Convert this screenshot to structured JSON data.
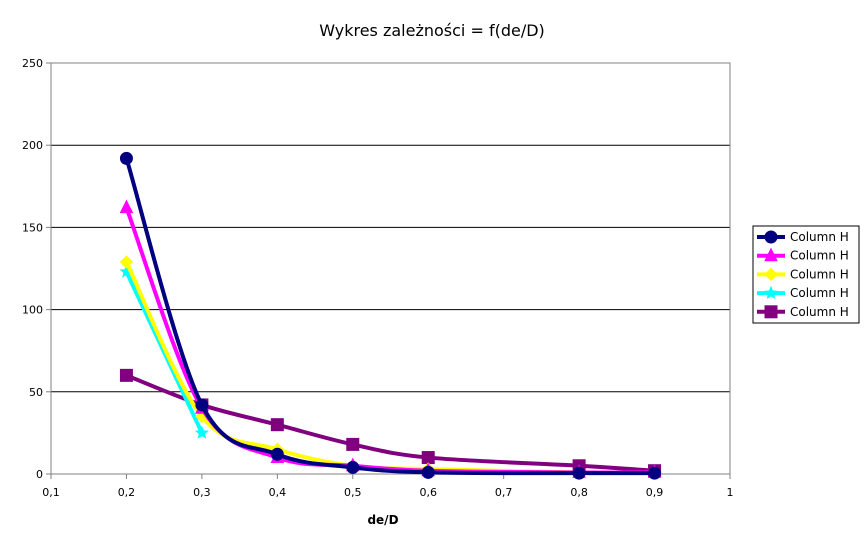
{
  "chart_data": {
    "type": "line",
    "title": "Wykres zależności    = f(de/D)",
    "xlabel": "de/D",
    "ylabel": "",
    "xlim": [
      0.1,
      1.0
    ],
    "ylim": [
      0,
      250
    ],
    "x_ticks": [
      "0,1",
      "0,2",
      "0,3",
      "0,4",
      "0,5",
      "0,6",
      "0,7",
      "0,8",
      "0,9",
      "1"
    ],
    "y_ticks": [
      "0",
      "50",
      "100",
      "150",
      "200",
      "250"
    ],
    "grid": "horizontal",
    "legend_position": "right",
    "series": [
      {
        "name": "Column H",
        "color": "#000080",
        "marker": "circle",
        "x": [
          0.2,
          0.3,
          0.4,
          0.5,
          0.6,
          0.8,
          0.9
        ],
        "y": [
          192,
          42,
          12,
          4,
          1,
          0.5,
          0.5
        ]
      },
      {
        "name": "Column H",
        "color": "#ff00ff",
        "marker": "triangle",
        "x": [
          0.2,
          0.3,
          0.4,
          0.5,
          0.6,
          0.8,
          0.9
        ],
        "y": [
          162,
          40,
          10,
          5,
          2,
          1,
          1
        ]
      },
      {
        "name": "Column H",
        "color": "#ffff00",
        "marker": "diamond",
        "x": [
          0.2,
          0.3,
          0.4,
          0.5,
          0.6,
          0.8,
          0.9
        ],
        "y": [
          129,
          35,
          15,
          5,
          3,
          1,
          1
        ]
      },
      {
        "name": "Column H",
        "color": "#00ffff",
        "marker": "star",
        "x": [
          0.2,
          0.3
        ],
        "y": [
          123,
          25
        ]
      },
      {
        "name": "Column H",
        "color": "#800080",
        "marker": "square",
        "x": [
          0.2,
          0.3,
          0.4,
          0.5,
          0.6,
          0.8,
          0.9
        ],
        "y": [
          60,
          42,
          30,
          18,
          10,
          5,
          2
        ]
      }
    ]
  }
}
